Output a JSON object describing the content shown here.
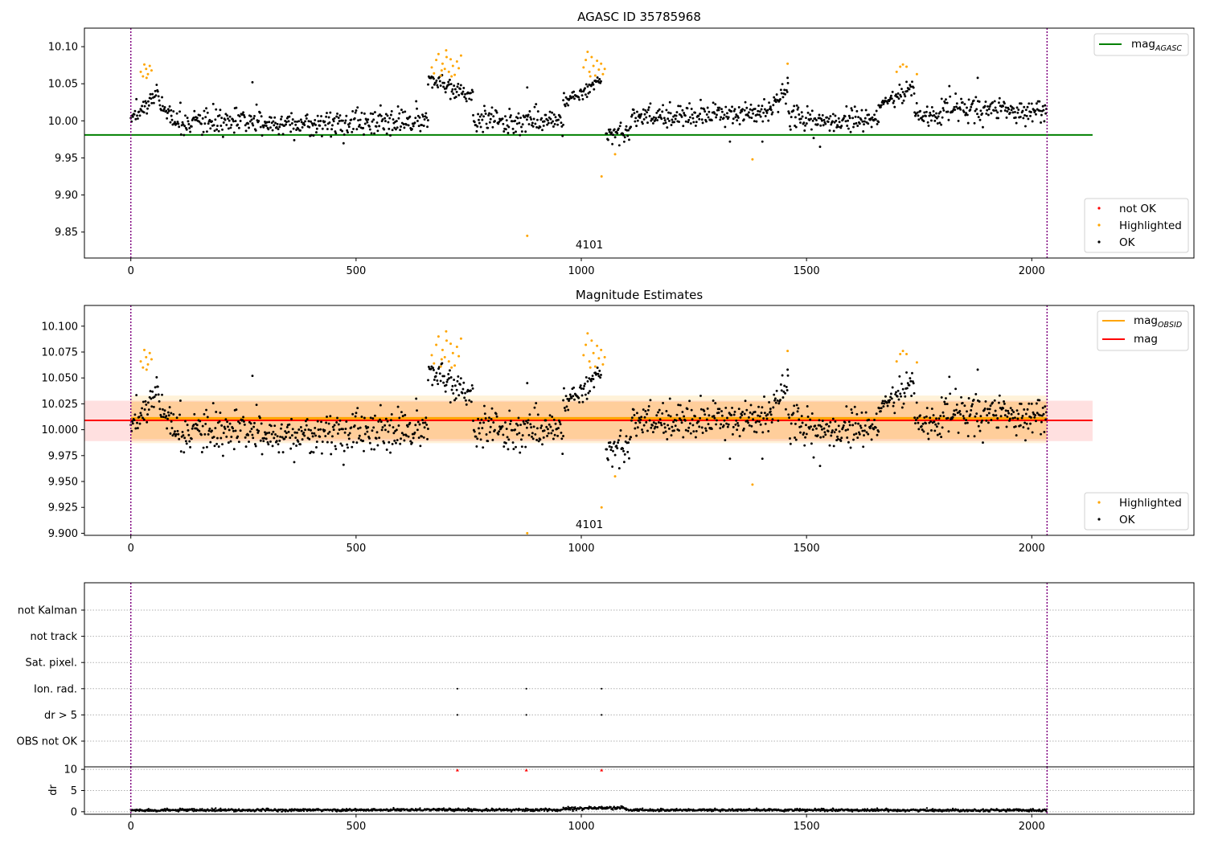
{
  "chart_data": [
    {
      "id": "agasc",
      "type": "scatter",
      "title": "AGASC ID 35785968",
      "xlim": [
        -103,
        2360
      ],
      "ylim": [
        9.815,
        10.125
      ],
      "xticks": [
        0,
        500,
        1000,
        1500,
        2000
      ],
      "yticks": [
        9.85,
        9.9,
        9.95,
        10.0,
        10.05,
        10.1
      ],
      "ytick_labels": [
        "9.85",
        "9.90",
        "9.95",
        "10.00",
        "10.05",
        "10.10"
      ],
      "vlines": [
        0,
        2034
      ],
      "hlines": [
        {
          "name": "mag",
          "sub": "AGASC",
          "y": 9.981,
          "x": [
            -103,
            2135
          ],
          "color": "#008000"
        }
      ],
      "annotation": {
        "text": "4101",
        "x": 1018,
        "y": 9.828
      },
      "legend_upper": {
        "position": "top-right"
      },
      "legend_lower": {
        "position": "bottom-right",
        "entries": [
          {
            "label": "not OK",
            "color": "#ff0000"
          },
          {
            "label": "Highlighted",
            "color": "#ffa500"
          },
          {
            "label": "OK",
            "color": "#000000"
          }
        ]
      },
      "highlight_points": [
        [
          22,
          10.066
        ],
        [
          27,
          10.06
        ],
        [
          30,
          10.076
        ],
        [
          34,
          10.07
        ],
        [
          38,
          10.063
        ],
        [
          42,
          10.074
        ],
        [
          46,
          10.068
        ],
        [
          35,
          10.058
        ],
        [
          668,
          10.072
        ],
        [
          673,
          10.064
        ],
        [
          678,
          10.082
        ],
        [
          683,
          10.09
        ],
        [
          688,
          10.061
        ],
        [
          692,
          10.077
        ],
        [
          697,
          10.07
        ],
        [
          701,
          10.086
        ],
        [
          706,
          10.066
        ],
        [
          710,
          10.083
        ],
        [
          715,
          10.074
        ],
        [
          719,
          10.062
        ],
        [
          724,
          10.08
        ],
        [
          728,
          10.071
        ],
        [
          733,
          10.088
        ],
        [
          700,
          10.095
        ],
        [
          712,
          10.06
        ],
        [
          690,
          10.068
        ],
        [
          1005,
          10.072
        ],
        [
          1010,
          10.082
        ],
        [
          1014,
          10.093
        ],
        [
          1018,
          10.066
        ],
        [
          1023,
          10.086
        ],
        [
          1027,
          10.074
        ],
        [
          1031,
          10.061
        ],
        [
          1035,
          10.081
        ],
        [
          1039,
          10.069
        ],
        [
          1044,
          10.077
        ],
        [
          1048,
          10.063
        ],
        [
          1052,
          10.07
        ],
        [
          1020,
          10.06
        ],
        [
          880,
          9.845
        ],
        [
          1045,
          9.925
        ],
        [
          1075,
          9.955
        ],
        [
          1380,
          9.948
        ],
        [
          1458,
          10.077
        ],
        [
          1700,
          10.066
        ],
        [
          1708,
          10.073
        ],
        [
          1714,
          10.076
        ],
        [
          1722,
          10.073
        ],
        [
          1745,
          10.063
        ]
      ],
      "ok_segments": [
        {
          "x": [
            0,
            60
          ],
          "y": [
            10.0,
            10.04
          ],
          "noise": 0.01
        },
        {
          "x": [
            60,
            90
          ],
          "y": [
            10.03,
            10.005
          ],
          "noise": 0.01
        },
        {
          "x": [
            90,
            370
          ],
          "y": [
            9.998,
            9.997
          ],
          "noise": 0.014
        },
        {
          "x": [
            370,
            660
          ],
          "y": [
            9.995,
            10.0
          ],
          "noise": 0.015
        },
        {
          "x": [
            660,
            760
          ],
          "y": [
            10.055,
            10.035
          ],
          "noise": 0.01
        },
        {
          "x": [
            760,
            960
          ],
          "y": [
            10.0,
            10.0
          ],
          "noise": 0.014
        },
        {
          "x": [
            960,
            1045
          ],
          "y": [
            10.025,
            10.055
          ],
          "noise": 0.009
        },
        {
          "x": [
            1055,
            1110
          ],
          "y": [
            9.982,
            9.985
          ],
          "noise": 0.01
        },
        {
          "x": [
            1110,
            1420
          ],
          "y": [
            10.005,
            10.012
          ],
          "noise": 0.013
        },
        {
          "x": [
            1420,
            1460
          ],
          "y": [
            10.015,
            10.045
          ],
          "noise": 0.01
        },
        {
          "x": [
            1460,
            1660
          ],
          "y": [
            10.0,
            10.0
          ],
          "noise": 0.013
        },
        {
          "x": [
            1660,
            1740
          ],
          "y": [
            10.02,
            10.045
          ],
          "noise": 0.01
        },
        {
          "x": [
            1740,
            1800
          ],
          "y": [
            10.01,
            10.005
          ],
          "noise": 0.012
        },
        {
          "x": [
            1800,
            2034
          ],
          "y": [
            10.02,
            10.01
          ],
          "noise": 0.013
        }
      ],
      "ok_extra_points": [
        [
          270,
          10.052
        ],
        [
          880,
          10.045
        ],
        [
          1458,
          10.058
        ],
        [
          1880,
          10.058
        ],
        [
          1530,
          9.965
        ],
        [
          1330,
          9.972
        ],
        [
          1402,
          9.972
        ]
      ]
    },
    {
      "id": "mag_estimates",
      "type": "scatter",
      "title": "Magnitude Estimates",
      "xlim": [
        -103,
        2360
      ],
      "ylim": [
        9.898,
        10.12
      ],
      "xticks": [
        0,
        500,
        1000,
        1500,
        2000
      ],
      "yticks": [
        9.9,
        9.925,
        9.95,
        9.975,
        10.0,
        10.025,
        10.05,
        10.075,
        10.1
      ],
      "ytick_labels": [
        "9.900",
        "9.925",
        "9.950",
        "9.975",
        "10.000",
        "10.025",
        "10.050",
        "10.075",
        "10.100"
      ],
      "vlines": [
        0,
        2034
      ],
      "hlines": [
        {
          "name": "mag",
          "sub": "OBSID",
          "y": 10.011,
          "x": [
            0,
            2034
          ],
          "color": "#ffa500"
        },
        {
          "name": "mag",
          "sub": "",
          "y": 10.009,
          "x": [
            -103,
            2135
          ],
          "color": "#ff0000"
        }
      ],
      "bands": [
        {
          "y": [
            9.989,
            10.028
          ],
          "x": [
            -103,
            2135
          ],
          "color": "#ff0000",
          "opacity": 0.12
        },
        {
          "y": [
            9.987,
            10.033
          ],
          "x": [
            0,
            2034
          ],
          "color": "#ffa500",
          "opacity": 0.15
        },
        {
          "y": [
            9.991,
            10.027
          ],
          "x": [
            0,
            2034
          ],
          "color": "#ffa500",
          "opacity": 0.18
        }
      ],
      "annotation": {
        "text": "4101",
        "x": 1018,
        "y": 9.905
      },
      "legend_upper": {
        "position": "top-right"
      },
      "legend_lower": {
        "position": "bottom-right",
        "entries": [
          {
            "label": "Highlighted",
            "color": "#ffa500"
          },
          {
            "label": "OK",
            "color": "#000000"
          }
        ]
      },
      "highlight_points": [
        [
          22,
          10.066
        ],
        [
          27,
          10.06
        ],
        [
          30,
          10.077
        ],
        [
          34,
          10.07
        ],
        [
          38,
          10.063
        ],
        [
          42,
          10.074
        ],
        [
          46,
          10.068
        ],
        [
          35,
          10.058
        ],
        [
          668,
          10.072
        ],
        [
          673,
          10.064
        ],
        [
          678,
          10.082
        ],
        [
          683,
          10.09
        ],
        [
          688,
          10.061
        ],
        [
          692,
          10.077
        ],
        [
          697,
          10.07
        ],
        [
          701,
          10.086
        ],
        [
          706,
          10.066
        ],
        [
          710,
          10.083
        ],
        [
          715,
          10.074
        ],
        [
          719,
          10.062
        ],
        [
          724,
          10.08
        ],
        [
          728,
          10.071
        ],
        [
          733,
          10.088
        ],
        [
          700,
          10.095
        ],
        [
          712,
          10.06
        ],
        [
          690,
          10.068
        ],
        [
          1005,
          10.072
        ],
        [
          1010,
          10.082
        ],
        [
          1014,
          10.093
        ],
        [
          1018,
          10.066
        ],
        [
          1023,
          10.086
        ],
        [
          1027,
          10.074
        ],
        [
          1031,
          10.061
        ],
        [
          1035,
          10.081
        ],
        [
          1039,
          10.069
        ],
        [
          1044,
          10.077
        ],
        [
          1048,
          10.063
        ],
        [
          1052,
          10.07
        ],
        [
          1020,
          10.06
        ],
        [
          880,
          9.9
        ],
        [
          1045,
          9.925
        ],
        [
          1075,
          9.955
        ],
        [
          1380,
          9.947
        ],
        [
          1458,
          10.076
        ],
        [
          1700,
          10.066
        ],
        [
          1708,
          10.073
        ],
        [
          1714,
          10.076
        ],
        [
          1722,
          10.073
        ],
        [
          1745,
          10.065
        ]
      ],
      "ok_segments": [
        {
          "x": [
            0,
            60
          ],
          "y": [
            10.0,
            10.04
          ],
          "noise": 0.012
        },
        {
          "x": [
            60,
            90
          ],
          "y": [
            10.03,
            10.005
          ],
          "noise": 0.012
        },
        {
          "x": [
            90,
            370
          ],
          "y": [
            9.998,
            9.995
          ],
          "noise": 0.016
        },
        {
          "x": [
            370,
            660
          ],
          "y": [
            9.995,
            10.0
          ],
          "noise": 0.017
        },
        {
          "x": [
            660,
            760
          ],
          "y": [
            10.055,
            10.035
          ],
          "noise": 0.012
        },
        {
          "x": [
            760,
            960
          ],
          "y": [
            10.0,
            10.0
          ],
          "noise": 0.016
        },
        {
          "x": [
            960,
            1045
          ],
          "y": [
            10.025,
            10.055
          ],
          "noise": 0.011
        },
        {
          "x": [
            1055,
            1110
          ],
          "y": [
            9.98,
            9.985
          ],
          "noise": 0.012
        },
        {
          "x": [
            1110,
            1420
          ],
          "y": [
            10.008,
            10.012
          ],
          "noise": 0.015
        },
        {
          "x": [
            1420,
            1460
          ],
          "y": [
            10.015,
            10.045
          ],
          "noise": 0.012
        },
        {
          "x": [
            1460,
            1660
          ],
          "y": [
            10.0,
            10.0
          ],
          "noise": 0.015
        },
        {
          "x": [
            1660,
            1740
          ],
          "y": [
            10.02,
            10.045
          ],
          "noise": 0.012
        },
        {
          "x": [
            1740,
            1800
          ],
          "y": [
            10.01,
            10.005
          ],
          "noise": 0.014
        },
        {
          "x": [
            1800,
            2034
          ],
          "y": [
            10.02,
            10.01
          ],
          "noise": 0.015
        }
      ],
      "ok_extra_points": [
        [
          270,
          10.052
        ],
        [
          880,
          10.045
        ],
        [
          1458,
          10.058
        ],
        [
          1880,
          10.058
        ],
        [
          1530,
          9.965
        ],
        [
          1330,
          9.972
        ],
        [
          1402,
          9.972
        ]
      ]
    },
    {
      "id": "flags",
      "type": "scatter",
      "xlim": [
        -103,
        2360
      ],
      "vlines": [
        0,
        2034
      ],
      "flag_rows": [
        "not Kalman",
        "not track",
        "Sat. pixel.",
        "Ion. rad.",
        "dr > 5",
        "OBS not OK"
      ],
      "flag_points": [
        {
          "row": "Ion. rad.",
          "x": [
            725,
            878,
            1045
          ]
        },
        {
          "row": "dr > 5",
          "x": [
            725,
            878,
            1045
          ]
        }
      ]
    },
    {
      "id": "dr",
      "type": "scatter",
      "xlim": [
        -103,
        2360
      ],
      "ylim": [
        -0.6,
        10.6
      ],
      "ylabel": "dr",
      "xticks": [
        0,
        500,
        1000,
        1500,
        2000
      ],
      "yticks": [
        0,
        5,
        10
      ],
      "ytick_labels": [
        "0",
        "5",
        "10"
      ],
      "vlines": [
        0,
        2034
      ],
      "clipped_points": {
        "x": [
          725,
          878,
          1045
        ],
        "color": "#ff0000"
      },
      "dr_segments": [
        {
          "x": [
            0,
            600
          ],
          "y": [
            0.35,
            0.4
          ],
          "noise": 0.15
        },
        {
          "x": [
            600,
            960
          ],
          "y": [
            0.5,
            0.4
          ],
          "noise": 0.15
        },
        {
          "x": [
            960,
            1100
          ],
          "y": [
            0.8,
            0.9
          ],
          "noise": 0.2
        },
        {
          "x": [
            1100,
            2034
          ],
          "y": [
            0.4,
            0.35
          ],
          "noise": 0.15
        }
      ]
    }
  ],
  "colors": {
    "ok": "#000000",
    "highlighted": "#ffa500",
    "not_ok": "#ff0000",
    "vline": "#800080",
    "grid": "#b0b0b0"
  }
}
